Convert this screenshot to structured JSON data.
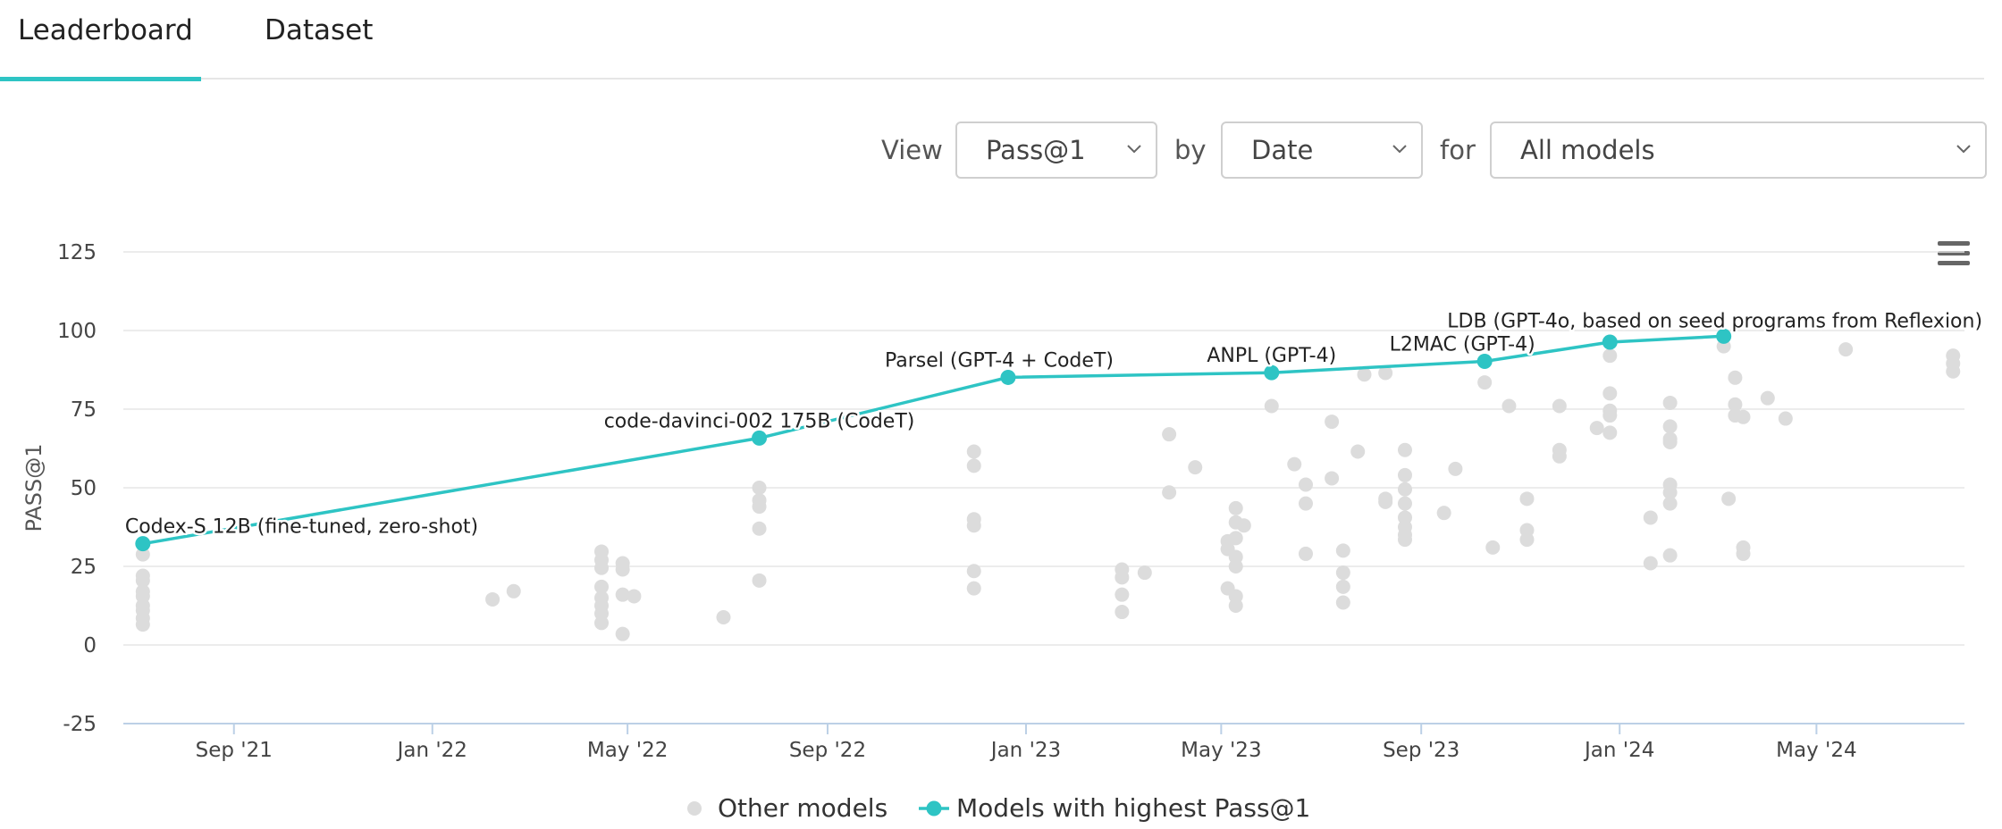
{
  "tabs": {
    "leaderboard": "Leaderboard",
    "dataset": "Dataset"
  },
  "controls": {
    "view_label": "View",
    "view_value": "Pass@1",
    "by_label": "by",
    "by_value": "Date",
    "for_label": "for",
    "for_value": "All models"
  },
  "colors": {
    "accent": "#2ec4c4",
    "other": "#dcdcdc",
    "grid": "#e6e6e6",
    "axis_text": "#444"
  },
  "chart_data": {
    "type": "scatter",
    "ylabel": "PASS@1",
    "ylim": [
      -25,
      125
    ],
    "yticks": [
      -25,
      0,
      25,
      50,
      75,
      100,
      125
    ],
    "xlim": [
      "2021-06-25",
      "2024-07-31"
    ],
    "xticks": [
      {
        "date": "2021-09-01",
        "label": "Sep '21"
      },
      {
        "date": "2022-01-01",
        "label": "Jan '22"
      },
      {
        "date": "2022-05-01",
        "label": "May '22"
      },
      {
        "date": "2022-09-01",
        "label": "Sep '22"
      },
      {
        "date": "2023-01-01",
        "label": "Jan '23"
      },
      {
        "date": "2023-05-01",
        "label": "May '23"
      },
      {
        "date": "2023-09-01",
        "label": "Sep '23"
      },
      {
        "date": "2024-01-01",
        "label": "Jan '24"
      },
      {
        "date": "2024-05-01",
        "label": "May '24"
      }
    ],
    "legend": {
      "position": "bottom",
      "other": "Other models",
      "best": "Models with highest Pass@1"
    },
    "best_series": [
      {
        "date": "2021-07-07",
        "value": 32.2,
        "label": "Codex-S 12B (fine-tuned, zero-shot)"
      },
      {
        "date": "2022-07-21",
        "value": 65.8,
        "label": "code-davinci-002 175B (CodeT)"
      },
      {
        "date": "2022-12-21",
        "value": 85.1,
        "label": "Parsel (GPT-4 + CodeT)"
      },
      {
        "date": "2023-06-01",
        "value": 86.6,
        "label": "ANPL (GPT-4)"
      },
      {
        "date": "2023-10-10",
        "value": 90.2,
        "label": "L2MAC (GPT-4)"
      },
      {
        "date": "2023-12-26",
        "value": 96.3,
        "label": ""
      },
      {
        "date": "2024-03-05",
        "value": 98.2,
        "label": "LDB (GPT-4o, based on seed programs from Reflexion)"
      }
    ],
    "other_series": [
      {
        "date": "2021-07-07",
        "value": 28.8
      },
      {
        "date": "2021-07-07",
        "value": 22.0
      },
      {
        "date": "2021-07-07",
        "value": 20.5
      },
      {
        "date": "2021-07-07",
        "value": 17.0
      },
      {
        "date": "2021-07-07",
        "value": 15.5
      },
      {
        "date": "2021-07-07",
        "value": 12.5
      },
      {
        "date": "2021-07-07",
        "value": 11.0
      },
      {
        "date": "2021-07-07",
        "value": 8.5
      },
      {
        "date": "2021-07-07",
        "value": 6.5
      },
      {
        "date": "2022-02-07",
        "value": 14.5
      },
      {
        "date": "2022-02-20",
        "value": 17.1
      },
      {
        "date": "2022-04-15",
        "value": 29.7
      },
      {
        "date": "2022-04-15",
        "value": 27.0
      },
      {
        "date": "2022-04-15",
        "value": 24.5
      },
      {
        "date": "2022-04-15",
        "value": 18.5
      },
      {
        "date": "2022-04-15",
        "value": 15.0
      },
      {
        "date": "2022-04-15",
        "value": 12.5
      },
      {
        "date": "2022-04-15",
        "value": 10.0
      },
      {
        "date": "2022-04-15",
        "value": 7.0
      },
      {
        "date": "2022-04-28",
        "value": 26.0
      },
      {
        "date": "2022-04-28",
        "value": 24.0
      },
      {
        "date": "2022-04-28",
        "value": 16.0
      },
      {
        "date": "2022-04-28",
        "value": 3.5
      },
      {
        "date": "2022-05-05",
        "value": 15.5
      },
      {
        "date": "2022-06-29",
        "value": 8.8
      },
      {
        "date": "2022-07-21",
        "value": 50.0
      },
      {
        "date": "2022-07-21",
        "value": 46.0
      },
      {
        "date": "2022-07-21",
        "value": 44.0
      },
      {
        "date": "2022-07-21",
        "value": 37.0
      },
      {
        "date": "2022-07-21",
        "value": 20.5
      },
      {
        "date": "2022-11-30",
        "value": 61.5
      },
      {
        "date": "2022-11-30",
        "value": 57.0
      },
      {
        "date": "2022-11-30",
        "value": 40.0
      },
      {
        "date": "2022-11-30",
        "value": 38.0
      },
      {
        "date": "2022-11-30",
        "value": 23.5
      },
      {
        "date": "2022-11-30",
        "value": 18.0
      },
      {
        "date": "2023-03-01",
        "value": 24.0
      },
      {
        "date": "2023-03-01",
        "value": 21.5
      },
      {
        "date": "2023-03-01",
        "value": 16.0
      },
      {
        "date": "2023-03-01",
        "value": 10.5
      },
      {
        "date": "2023-03-15",
        "value": 23.0
      },
      {
        "date": "2023-03-30",
        "value": 67.0
      },
      {
        "date": "2023-03-30",
        "value": 48.5
      },
      {
        "date": "2023-04-15",
        "value": 56.5
      },
      {
        "date": "2023-05-05",
        "value": 33.0
      },
      {
        "date": "2023-05-05",
        "value": 30.5
      },
      {
        "date": "2023-05-05",
        "value": 18.0
      },
      {
        "date": "2023-05-10",
        "value": 43.5
      },
      {
        "date": "2023-05-10",
        "value": 39.0
      },
      {
        "date": "2023-05-10",
        "value": 34.0
      },
      {
        "date": "2023-05-10",
        "value": 28.0
      },
      {
        "date": "2023-05-10",
        "value": 25.0
      },
      {
        "date": "2023-05-10",
        "value": 15.5
      },
      {
        "date": "2023-05-10",
        "value": 12.5
      },
      {
        "date": "2023-05-15",
        "value": 38.0
      },
      {
        "date": "2023-06-01",
        "value": 76.0
      },
      {
        "date": "2023-06-15",
        "value": 57.5
      },
      {
        "date": "2023-06-22",
        "value": 51.0
      },
      {
        "date": "2023-06-22",
        "value": 45.0
      },
      {
        "date": "2023-06-22",
        "value": 29.0
      },
      {
        "date": "2023-07-08",
        "value": 71.0
      },
      {
        "date": "2023-07-08",
        "value": 53.0
      },
      {
        "date": "2023-07-15",
        "value": 30.0
      },
      {
        "date": "2023-07-15",
        "value": 23.0
      },
      {
        "date": "2023-07-15",
        "value": 18.5
      },
      {
        "date": "2023-07-15",
        "value": 13.5
      },
      {
        "date": "2023-07-24",
        "value": 61.5
      },
      {
        "date": "2023-07-28",
        "value": 86.0
      },
      {
        "date": "2023-08-10",
        "value": 86.5
      },
      {
        "date": "2023-08-10",
        "value": 46.5
      },
      {
        "date": "2023-08-10",
        "value": 45.5
      },
      {
        "date": "2023-08-22",
        "value": 62.0
      },
      {
        "date": "2023-08-22",
        "value": 54.0
      },
      {
        "date": "2023-08-22",
        "value": 49.5
      },
      {
        "date": "2023-08-22",
        "value": 45.0
      },
      {
        "date": "2023-08-22",
        "value": 40.5
      },
      {
        "date": "2023-08-22",
        "value": 37.5
      },
      {
        "date": "2023-08-22",
        "value": 35.0
      },
      {
        "date": "2023-08-22",
        "value": 33.5
      },
      {
        "date": "2023-09-15",
        "value": 42.0
      },
      {
        "date": "2023-09-22",
        "value": 56.0
      },
      {
        "date": "2023-10-10",
        "value": 83.5
      },
      {
        "date": "2023-10-15",
        "value": 31.0
      },
      {
        "date": "2023-10-25",
        "value": 76.0
      },
      {
        "date": "2023-11-05",
        "value": 46.5
      },
      {
        "date": "2023-11-05",
        "value": 36.5
      },
      {
        "date": "2023-11-05",
        "value": 33.5
      },
      {
        "date": "2023-11-25",
        "value": 76.0
      },
      {
        "date": "2023-11-25",
        "value": 62.0
      },
      {
        "date": "2023-11-25",
        "value": 60.0
      },
      {
        "date": "2023-12-18",
        "value": 69.0
      },
      {
        "date": "2023-12-26",
        "value": 92.0
      },
      {
        "date": "2023-12-26",
        "value": 80.0
      },
      {
        "date": "2023-12-26",
        "value": 74.5
      },
      {
        "date": "2023-12-26",
        "value": 73.0
      },
      {
        "date": "2023-12-26",
        "value": 67.5
      },
      {
        "date": "2024-01-20",
        "value": 40.5
      },
      {
        "date": "2024-01-20",
        "value": 26.0
      },
      {
        "date": "2024-02-01",
        "value": 77.0
      },
      {
        "date": "2024-02-01",
        "value": 69.5
      },
      {
        "date": "2024-02-01",
        "value": 65.5
      },
      {
        "date": "2024-02-01",
        "value": 64.5
      },
      {
        "date": "2024-02-01",
        "value": 51.0
      },
      {
        "date": "2024-02-01",
        "value": 48.5
      },
      {
        "date": "2024-02-01",
        "value": 45.0
      },
      {
        "date": "2024-02-01",
        "value": 28.5
      },
      {
        "date": "2024-03-05",
        "value": 95.0
      },
      {
        "date": "2024-03-08",
        "value": 46.5
      },
      {
        "date": "2024-03-12",
        "value": 85.0
      },
      {
        "date": "2024-03-12",
        "value": 76.5
      },
      {
        "date": "2024-03-12",
        "value": 73.0
      },
      {
        "date": "2024-03-17",
        "value": 72.5
      },
      {
        "date": "2024-03-17",
        "value": 31.0
      },
      {
        "date": "2024-03-17",
        "value": 29.0
      },
      {
        "date": "2024-04-01",
        "value": 78.5
      },
      {
        "date": "2024-04-12",
        "value": 72.0
      },
      {
        "date": "2024-05-19",
        "value": 94.0
      },
      {
        "date": "2024-07-24",
        "value": 92.0
      },
      {
        "date": "2024-07-24",
        "value": 89.5
      },
      {
        "date": "2024-07-24",
        "value": 87.0
      }
    ]
  }
}
